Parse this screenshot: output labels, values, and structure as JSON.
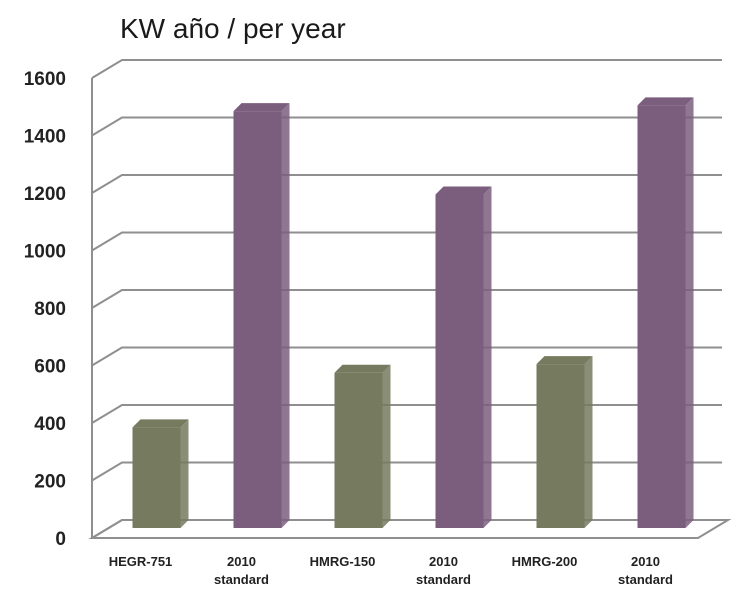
{
  "chart_data": {
    "type": "bar",
    "title": "KW año / per year",
    "xlabel": "",
    "ylabel": "",
    "ylim": [
      0,
      1600
    ],
    "yticks": [
      0,
      200,
      400,
      600,
      800,
      1000,
      1200,
      1400,
      1600
    ],
    "grid": true,
    "categories": [
      [
        "HEGR-751"
      ],
      [
        "2010",
        "standard"
      ],
      [
        "HMRG-150"
      ],
      [
        "2010",
        "standard"
      ],
      [
        "HMRG-200"
      ],
      [
        "2010",
        "standard"
      ]
    ],
    "values": [
      350,
      1450,
      540,
      1160,
      570,
      1470
    ],
    "colors": {
      "model_bar": "#767a5e",
      "standard_bar": "#7b5e7e",
      "grid": "#8f8f8f"
    },
    "bar_color_keys": [
      "model_bar",
      "standard_bar",
      "model_bar",
      "standard_bar",
      "model_bar",
      "standard_bar"
    ]
  }
}
